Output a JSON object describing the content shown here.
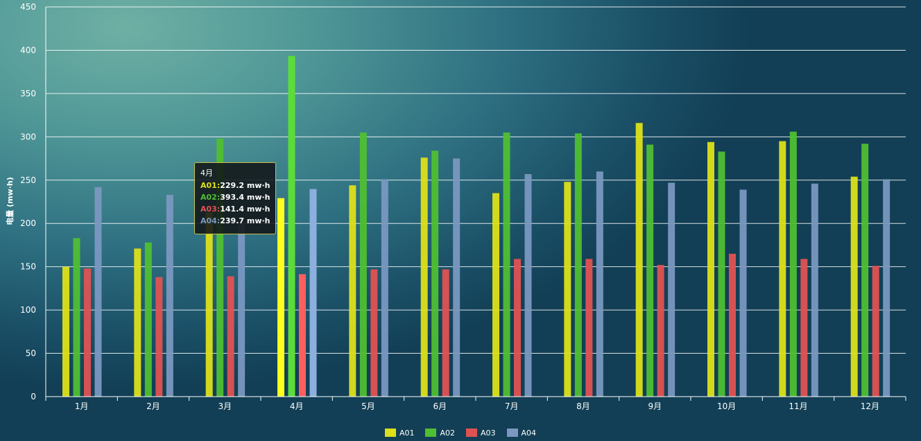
{
  "chart_data": {
    "type": "bar",
    "categories": [
      "1月",
      "2月",
      "3月",
      "4月",
      "5月",
      "6月",
      "7月",
      "8月",
      "9月",
      "10月",
      "11月",
      "12月"
    ],
    "ylabel": "电量 (mw·h)",
    "ylim": [
      0,
      450
    ],
    "yticks": [
      0,
      50,
      100,
      150,
      200,
      250,
      300,
      350,
      400,
      450
    ],
    "grid": true,
    "legend_position": "bottom-center",
    "series": [
      {
        "name": "A01",
        "color": "#dde019",
        "values": [
          150,
          171,
          213,
          229.2,
          244,
          276,
          235,
          248,
          316,
          294,
          295,
          254
        ]
      },
      {
        "name": "A02",
        "color": "#4fbf33",
        "values": [
          183,
          178,
          298,
          393.4,
          305,
          284,
          305,
          304,
          291,
          283,
          306,
          292
        ]
      },
      {
        "name": "A03",
        "color": "#e05252",
        "values": [
          148,
          138,
          139,
          141.4,
          147,
          147,
          159,
          159,
          152,
          165,
          159,
          151
        ]
      },
      {
        "name": "A04",
        "color": "#7a98c0",
        "values": [
          242,
          233,
          200,
          239.7,
          251,
          275,
          257,
          260,
          247,
          239,
          246,
          251
        ]
      }
    ]
  },
  "tooltip": {
    "title": "4月",
    "rows": [
      {
        "name": "A01",
        "sep": ":",
        "value": "229.2 mw·h",
        "color": "#dde019"
      },
      {
        "name": "A02",
        "sep": ":",
        "value": "393.4 mw·h",
        "color": "#4fbf33"
      },
      {
        "name": "A03",
        "sep": ":",
        "value": "141.4 mw·h",
        "color": "#e05252"
      },
      {
        "name": "A04",
        "sep": ":",
        "value": "239.7 mw·h",
        "color": "#7a98c0"
      }
    ]
  },
  "legend": [
    "A01",
    "A02",
    "A03",
    "A04"
  ]
}
